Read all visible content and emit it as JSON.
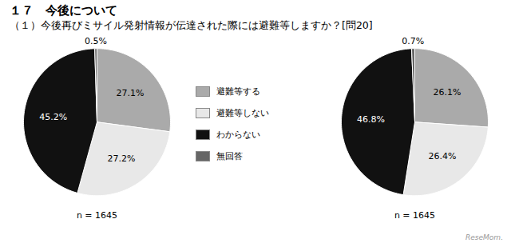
{
  "chart_data": [
    {
      "type": "pie",
      "title": "１７　今後について",
      "subtitle": "（１）今後再びミサイル発射情報が伝達された際には避難等しますか？[問20]",
      "categories": [
        "避難等する",
        "避難等しない",
        "わからない",
        "無回答"
      ],
      "values": [
        27.1,
        27.2,
        45.2,
        0.5
      ],
      "value_labels": [
        "27.1%",
        "27.2%",
        "45.2%",
        "0.5%"
      ],
      "colors": [
        "#aaaaaa",
        "#e8e8e8",
        "#111111",
        "#666666"
      ],
      "data_labels": true,
      "legend": "center",
      "annotations": [
        "n = 1645"
      ]
    },
    {
      "type": "pie",
      "categories": [
        "避難等する",
        "避難等しない",
        "わからない",
        "無回答"
      ],
      "values": [
        26.1,
        26.4,
        46.8,
        0.7
      ],
      "value_labels": [
        "26.1%",
        "26.4%",
        "46.8%",
        "0.7%"
      ],
      "colors": [
        "#aaaaaa",
        "#e8e8e8",
        "#111111",
        "#666666"
      ],
      "data_labels": true,
      "annotations": [
        "n = 1645",
        "ReseMom."
      ]
    }
  ]
}
